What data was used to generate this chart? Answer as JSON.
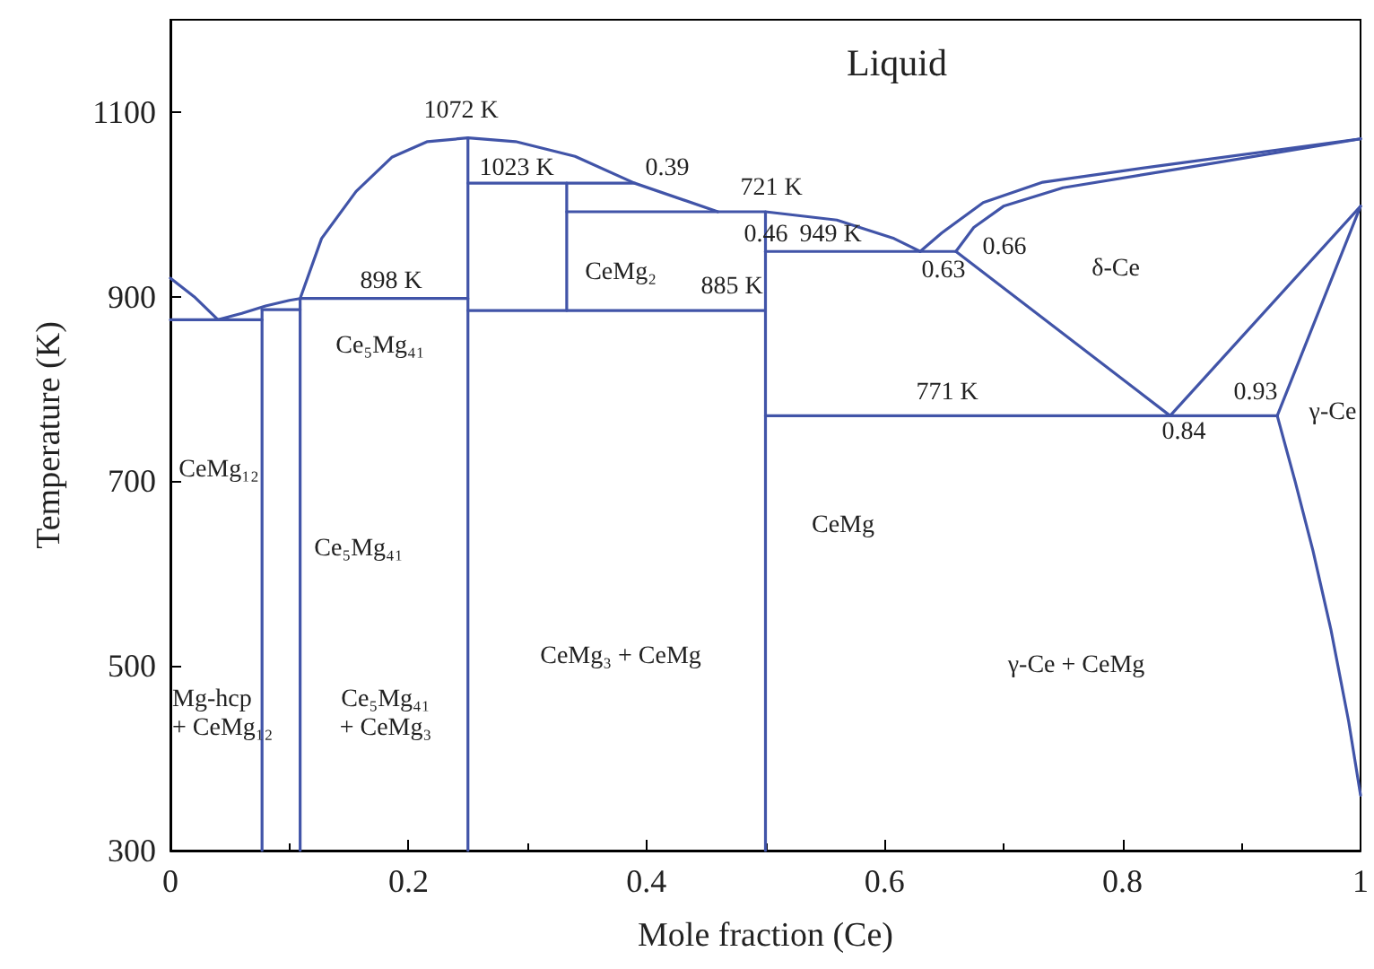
{
  "chart_data": {
    "type": "line",
    "xlabel": "Mole fraction (Ce)",
    "ylabel": "Temperature (K)",
    "xlim": [
      0,
      1
    ],
    "ylim": [
      300,
      1200
    ],
    "xticks": [
      0,
      0.2,
      0.4,
      0.6,
      0.8,
      1
    ],
    "yticks": [
      300,
      500,
      700,
      900,
      1100
    ],
    "grid": false,
    "marker": "none",
    "line_style": "solid",
    "series": [
      {
        "color": "#4154a8",
        "x": [
          0.25,
          0.109,
          0.1,
          0.08,
          0.06,
          0.04,
          0.02,
          0
        ],
        "values": [
          898,
          898,
          896,
          890,
          882,
          875,
          900,
          920
        ]
      },
      {
        "color": "#4154a8",
        "x": [
          0,
          0.077
        ],
        "values": [
          875,
          875
        ]
      },
      {
        "color": "#4154a8",
        "x": [
          0.077,
          0.077
        ],
        "values": [
          300,
          886
        ]
      },
      {
        "color": "#4154a8",
        "x": [
          0.077,
          0.109
        ],
        "values": [
          886,
          886
        ]
      },
      {
        "color": "#4154a8",
        "x": [
          0.109,
          0.109,
          0.127,
          0.156,
          0.186,
          0.216,
          0.25,
          0.29,
          0.34,
          0.39,
          0.46
        ],
        "values": [
          300,
          898,
          963,
          1014,
          1051,
          1068,
          1072,
          1068,
          1052,
          1023,
          992
        ]
      },
      {
        "color": "#4154a8",
        "x": [
          0.25,
          0.25
        ],
        "values": [
          300,
          1072
        ]
      },
      {
        "color": "#4154a8",
        "x": [
          0.25,
          0.39
        ],
        "values": [
          1023,
          1023
        ]
      },
      {
        "color": "#4154a8",
        "x": [
          0.333,
          0.333
        ],
        "values": [
          885,
          1023
        ]
      },
      {
        "color": "#4154a8",
        "x": [
          0.25,
          0.5
        ],
        "values": [
          885,
          885
        ]
      },
      {
        "color": "#4154a8",
        "x": [
          0.333,
          0.5,
          0.56,
          0.608,
          0.63
        ],
        "values": [
          992,
          992,
          983,
          963,
          949
        ]
      },
      {
        "color": "#4154a8",
        "x": [
          0.5,
          0.5
        ],
        "values": [
          300,
          992
        ]
      },
      {
        "color": "#4154a8",
        "x": [
          0.5,
          0.66
        ],
        "values": [
          949,
          949
        ]
      },
      {
        "color": "#4154a8",
        "x": [
          0.63,
          0.648,
          0.683,
          0.733,
          0.832,
          1
        ],
        "values": [
          949,
          969,
          1002,
          1024,
          1042,
          1071
        ]
      },
      {
        "color": "#4154a8",
        "x": [
          0.66,
          0.675,
          0.7,
          0.75,
          0.85,
          1
        ],
        "values": [
          949,
          975,
          998,
          1018,
          1039,
          1071
        ]
      },
      {
        "color": "#4154a8",
        "x": [
          0.66,
          0.84
        ],
        "values": [
          949,
          771
        ]
      },
      {
        "color": "#4154a8",
        "x": [
          0.5,
          0.93
        ],
        "values": [
          771,
          771
        ]
      },
      {
        "color": "#4154a8",
        "x": [
          0.84,
          1
        ],
        "values": [
          771,
          998
        ]
      },
      {
        "color": "#4154a8",
        "x": [
          0.93,
          1
        ],
        "values": [
          771,
          998
        ]
      },
      {
        "color": "#4154a8",
        "x": [
          0.93,
          0.945,
          0.96,
          0.975,
          0.99,
          1
        ],
        "values": [
          771,
          700,
          625,
          540,
          440,
          360
        ]
      }
    ],
    "annotations": [
      "Liquid",
      "1072 K",
      "1023 K",
      "0.39",
      "721 K",
      "0.46",
      "CeMg₂",
      "885 K",
      "949 K",
      "0.63",
      "0.66",
      "δ-Ce",
      "898 K",
      "Ce₅Mg₄₁",
      "771 K",
      "0.84",
      "0.93",
      "γ-Ce",
      "CeMg₁₂",
      "Ce₅Mg₄₁",
      "CeMg",
      "CeMg₃ + CeMg",
      "γ-Ce + CeMg",
      "Mg-hcp\n+ CeMg₁₂",
      "Ce₅Mg₄₁\n+ CeMg₃"
    ]
  }
}
